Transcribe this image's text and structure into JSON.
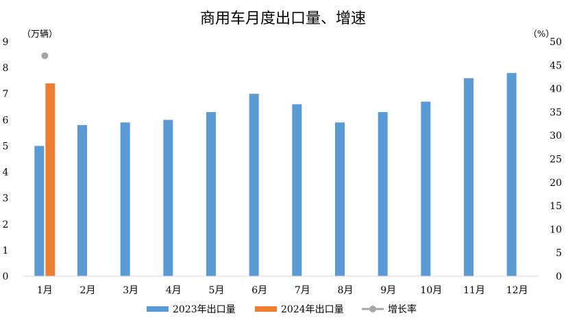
{
  "chart_data": {
    "type": "bar",
    "title": "商用车月度出口量、增速",
    "categories": [
      "1月",
      "2月",
      "3月",
      "4月",
      "5月",
      "6月",
      "7月",
      "8月",
      "9月",
      "10月",
      "11月",
      "12月"
    ],
    "series": [
      {
        "name": "2023年出口量",
        "type": "bar",
        "axis": "left",
        "color": "#5b9bd5",
        "values": [
          5.0,
          5.8,
          5.9,
          6.0,
          6.3,
          7.0,
          6.6,
          5.9,
          6.3,
          6.7,
          7.6,
          7.8
        ]
      },
      {
        "name": "2024年出口量",
        "type": "bar",
        "axis": "left",
        "color": "#ed7d31",
        "values": [
          7.4,
          null,
          null,
          null,
          null,
          null,
          null,
          null,
          null,
          null,
          null,
          null
        ]
      },
      {
        "name": "增长率",
        "type": "line",
        "axis": "right",
        "color": "#a5a5a5",
        "values": [
          47,
          null,
          null,
          null,
          null,
          null,
          null,
          null,
          null,
          null,
          null,
          null
        ]
      }
    ],
    "y_left": {
      "label": "（万辆）",
      "min": 0,
      "max": 9,
      "ticks": [
        "0",
        "1",
        "2",
        "3",
        "4",
        "5",
        "6",
        "7",
        "8",
        "9"
      ]
    },
    "y_right": {
      "label": "（%）",
      "min": 0,
      "max": 50,
      "ticks": [
        "0",
        "5",
        "10",
        "15",
        "20",
        "25",
        "30",
        "35",
        "40",
        "45",
        "50"
      ]
    },
    "grid": false,
    "legend_position": "bottom"
  }
}
